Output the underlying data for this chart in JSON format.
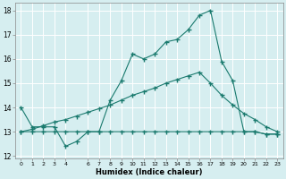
{
  "xlabel": "Humidex (Indice chaleur)",
  "bg_color": "#d6eef0",
  "grid_color": "#ffffff",
  "line_color": "#1a7a6e",
  "xlim": [
    -0.5,
    23.5
  ],
  "ylim": [
    11.9,
    18.3
  ],
  "yticks": [
    12,
    13,
    14,
    15,
    16,
    17,
    18
  ],
  "xticks": [
    0,
    1,
    2,
    3,
    4,
    6,
    7,
    8,
    9,
    10,
    11,
    12,
    13,
    14,
    15,
    16,
    17,
    18,
    19,
    20,
    21,
    22,
    23
  ],
  "curve1_x": [
    0,
    1,
    2,
    3,
    4,
    5,
    6,
    7,
    8,
    9,
    10,
    11,
    12,
    13,
    14,
    15,
    16,
    17,
    18,
    19,
    20,
    21,
    22,
    23
  ],
  "curve1_y": [
    14.0,
    13.2,
    13.2,
    13.2,
    12.4,
    12.6,
    13.0,
    13.0,
    14.3,
    15.1,
    16.2,
    16.0,
    16.2,
    16.7,
    16.8,
    17.2,
    17.8,
    18.0,
    15.9,
    15.1,
    13.0,
    13.0,
    12.9,
    12.9
  ],
  "curve2_x": [
    0,
    1,
    2,
    3,
    4,
    5,
    6,
    7,
    8,
    9,
    10,
    11,
    12,
    13,
    14,
    15,
    16,
    17,
    18,
    19,
    20,
    21,
    22,
    23
  ],
  "curve2_y": [
    13.0,
    13.0,
    13.0,
    13.0,
    13.0,
    13.0,
    13.0,
    13.0,
    13.0,
    13.0,
    13.0,
    13.0,
    13.0,
    13.0,
    13.0,
    13.0,
    13.0,
    13.0,
    13.0,
    13.0,
    13.0,
    13.0,
    12.9,
    12.9
  ],
  "curve3_x": [
    0,
    1,
    2,
    3,
    4,
    5,
    6,
    7,
    8,
    9,
    10,
    11,
    12,
    13,
    14,
    15,
    16,
    17,
    18,
    19,
    20,
    21,
    22,
    23
  ],
  "curve3_y": [
    13.0,
    13.1,
    13.25,
    13.4,
    13.5,
    13.65,
    13.8,
    13.95,
    14.1,
    14.3,
    14.5,
    14.65,
    14.8,
    15.0,
    15.15,
    15.3,
    15.45,
    15.0,
    14.5,
    14.1,
    13.75,
    13.5,
    13.2,
    13.0
  ]
}
